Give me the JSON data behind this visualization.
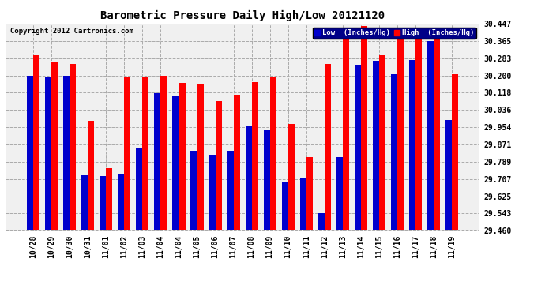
{
  "title": "Barometric Pressure Daily High/Low 20121120",
  "copyright": "Copyright 2012 Cartronics.com",
  "legend_low": "Low  (Inches/Hg)",
  "legend_high": "High  (Inches/Hg)",
  "low_color": "#0000cc",
  "high_color": "#ff0000",
  "background_color": "#ffffff",
  "plot_bg_color": "#f0f0f0",
  "ylim": [
    29.46,
    30.447
  ],
  "yticks": [
    29.46,
    29.543,
    29.625,
    29.707,
    29.789,
    29.871,
    29.954,
    30.036,
    30.118,
    30.2,
    30.283,
    30.365,
    30.447
  ],
  "categories": [
    "10/28",
    "10/29",
    "10/30",
    "10/31",
    "11/01",
    "11/02",
    "11/03",
    "11/04",
    "11/04",
    "11/05",
    "11/06",
    "11/07",
    "11/08",
    "11/09",
    "11/10",
    "11/11",
    "11/12",
    "11/13",
    "11/14",
    "11/15",
    "11/16",
    "11/17",
    "11/18",
    "11/19"
  ],
  "low_values": [
    30.2,
    30.195,
    30.2,
    29.725,
    29.72,
    29.73,
    29.855,
    30.115,
    30.1,
    29.84,
    29.82,
    29.84,
    29.96,
    29.94,
    29.69,
    29.71,
    29.545,
    29.81,
    30.25,
    30.27,
    30.205,
    30.275,
    30.365,
    29.99
  ],
  "high_values": [
    30.295,
    30.265,
    30.255,
    29.985,
    29.76,
    30.195,
    30.195,
    30.2,
    30.165,
    30.16,
    30.08,
    30.11,
    30.17,
    30.195,
    29.97,
    29.81,
    30.255,
    30.42,
    30.435,
    30.295,
    30.425,
    30.43,
    30.375,
    30.205
  ],
  "ybase": 29.46,
  "figwidth": 6.9,
  "figheight": 3.75,
  "dpi": 100
}
